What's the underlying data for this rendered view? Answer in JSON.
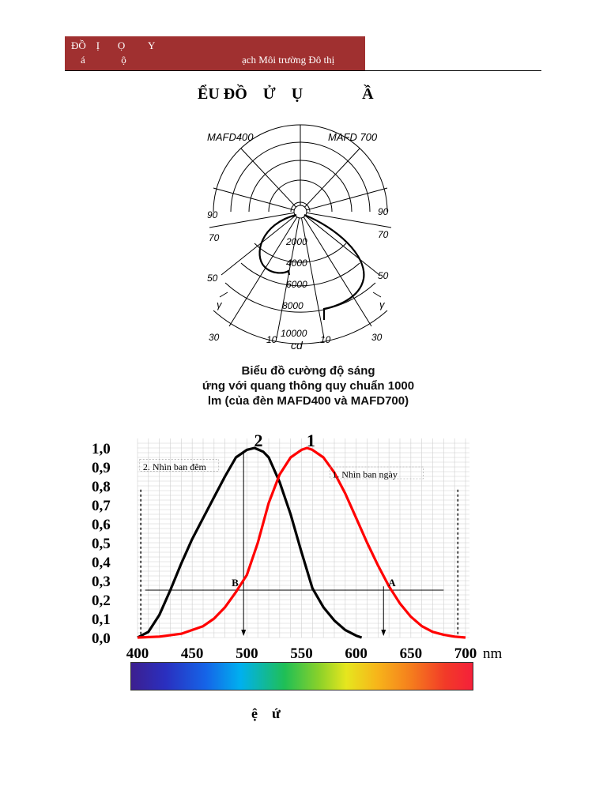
{
  "header": {
    "line1": "ĐỒ    Ị       Ọ         Y",
    "line2": "á              ộ",
    "line3": "ạch Môi trường Đô thị"
  },
  "page_title": "ỂU ĐỒ    Ử    Ụ               Ầ",
  "polar_figure": {
    "label_left": "MAFD400",
    "label_right": "MAFD 700",
    "angle_labels": [
      "90",
      "70",
      "50",
      "30",
      "10"
    ],
    "intensity_labels": [
      "2000",
      "4000",
      "6000",
      "8000",
      "10000"
    ],
    "unit": "cd",
    "gamma_symbol": "γ"
  },
  "polar_caption": [
    "Biểu đồ cường độ sáng",
    "ứng với quang thông quy chuẩn 1000",
    "lm (của đèn MAFD400 và MAFD700)"
  ],
  "chart_data": {
    "type": "line",
    "title": "",
    "xlabel": "nm",
    "ylabel": "",
    "xlim": [
      400,
      700
    ],
    "ylim": [
      0,
      1.0
    ],
    "x_ticks": [
      400,
      450,
      500,
      550,
      600,
      650,
      700
    ],
    "x_tick_labels": [
      "400",
      "450",
      "500",
      "550",
      "600",
      "650",
      "700"
    ],
    "y_ticks": [
      0,
      0.1,
      0.2,
      0.3,
      0.4,
      0.5,
      0.6,
      0.7,
      0.8,
      0.9,
      1.0
    ],
    "y_tick_labels": [
      "0,0",
      "0,1",
      "0,2",
      "0,3",
      "0,4",
      "0,5",
      "0,6",
      "0,7",
      "0,8",
      "0,9",
      "1,0"
    ],
    "x_unit_label": "nm",
    "grid": true,
    "series": [
      {
        "name": "2. Nhìn ban đêm",
        "number": "2",
        "color": "#000000",
        "x": [
          400,
          410,
          420,
          430,
          440,
          450,
          460,
          470,
          480,
          490,
          500,
          507,
          515,
          520,
          530,
          540,
          550,
          560,
          570,
          580,
          590,
          600,
          605
        ],
        "y": [
          0.0,
          0.03,
          0.12,
          0.25,
          0.39,
          0.52,
          0.63,
          0.74,
          0.85,
          0.95,
          0.99,
          1.0,
          0.98,
          0.95,
          0.82,
          0.65,
          0.45,
          0.26,
          0.16,
          0.09,
          0.04,
          0.01,
          0.0
        ]
      },
      {
        "name": "1. Nhìn ban ngày",
        "number": "1",
        "color": "#ff0000",
        "x": [
          400,
          420,
          440,
          460,
          470,
          480,
          490,
          500,
          510,
          520,
          530,
          540,
          550,
          555,
          560,
          570,
          580,
          590,
          600,
          610,
          620,
          630,
          640,
          650,
          660,
          670,
          680,
          690,
          700
        ],
        "y": [
          0.0,
          0.005,
          0.02,
          0.06,
          0.1,
          0.16,
          0.24,
          0.33,
          0.5,
          0.71,
          0.86,
          0.95,
          0.99,
          1.0,
          0.99,
          0.95,
          0.87,
          0.76,
          0.63,
          0.5,
          0.38,
          0.27,
          0.18,
          0.11,
          0.06,
          0.03,
          0.015,
          0.005,
          0.0
        ]
      }
    ],
    "reference_line": {
      "y": 0.25,
      "x_start": 407,
      "x_end": 680
    },
    "markers": [
      {
        "label": "B",
        "x": 497
      },
      {
        "label": "A",
        "x": 625
      }
    ],
    "dashed_verticals": [
      403,
      693
    ]
  },
  "spectrum_bar_label": "visible spectrum",
  "figure_caption": "ệ    ứ"
}
